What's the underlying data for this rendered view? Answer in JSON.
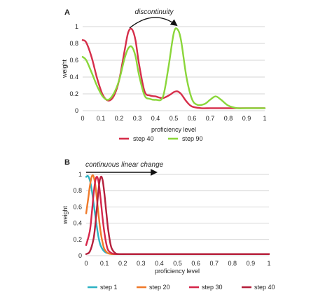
{
  "chart_data": [
    {
      "panel_label": "A",
      "type": "line",
      "xlabel": "proficiency level",
      "ylabel": "weight",
      "xlim": [
        0,
        1
      ],
      "ylim": [
        0,
        1
      ],
      "x_ticks": [
        0,
        0.1,
        0.2,
        0.3,
        0.4,
        0.5,
        0.6,
        0.7,
        0.8,
        0.9,
        1
      ],
      "x_tick_labels": [
        "0",
        "0.1",
        "0.2",
        "0.3",
        "0.4",
        "0.5",
        "0.6",
        "0.7",
        "0.8",
        "0.9",
        "1"
      ],
      "y_ticks": [
        0,
        0.2,
        0.4,
        0.6,
        0.8,
        1
      ],
      "y_tick_labels": [
        "0",
        "0.2",
        "0.4",
        "0.6",
        "0.8",
        "1"
      ],
      "grid": "horizontal",
      "legend_placement": "bottom",
      "annotation": "discontinuity",
      "series": [
        {
          "name": "step 40",
          "color": "#d62e4a",
          "x": [
            0,
            0.02,
            0.05,
            0.08,
            0.11,
            0.14,
            0.17,
            0.2,
            0.23,
            0.25,
            0.27,
            0.29,
            0.31,
            0.34,
            0.37,
            0.4,
            0.44,
            0.48,
            0.5,
            0.52,
            0.54,
            0.57,
            0.6,
            0.65,
            0.7,
            0.75,
            0.8,
            0.85,
            0.9,
            1
          ],
          "y": [
            0.84,
            0.81,
            0.63,
            0.38,
            0.19,
            0.12,
            0.17,
            0.36,
            0.71,
            0.93,
            0.97,
            0.84,
            0.55,
            0.23,
            0.18,
            0.17,
            0.15,
            0.19,
            0.22,
            0.23,
            0.2,
            0.11,
            0.05,
            0.03,
            0.03,
            0.03,
            0.03,
            0.03,
            0.03,
            0.03
          ]
        },
        {
          "name": "step 90",
          "color": "#8ad63a",
          "x": [
            0,
            0.02,
            0.05,
            0.08,
            0.11,
            0.14,
            0.17,
            0.2,
            0.23,
            0.25,
            0.27,
            0.29,
            0.31,
            0.34,
            0.37,
            0.4,
            0.44,
            0.47,
            0.5,
            0.52,
            0.54,
            0.57,
            0.6,
            0.63,
            0.67,
            0.7,
            0.73,
            0.76,
            0.8,
            0.85,
            0.9,
            1
          ],
          "y": [
            0.64,
            0.6,
            0.45,
            0.29,
            0.17,
            0.13,
            0.2,
            0.36,
            0.62,
            0.74,
            0.76,
            0.65,
            0.42,
            0.18,
            0.14,
            0.13,
            0.16,
            0.5,
            0.92,
            0.97,
            0.84,
            0.4,
            0.14,
            0.07,
            0.08,
            0.13,
            0.17,
            0.13,
            0.06,
            0.03,
            0.03,
            0.03
          ]
        }
      ]
    },
    {
      "panel_label": "B",
      "type": "line",
      "xlabel": "proficiency level",
      "ylabel": "weight",
      "xlim": [
        0,
        1
      ],
      "ylim": [
        0,
        1
      ],
      "x_ticks": [
        0,
        0.1,
        0.2,
        0.3,
        0.4,
        0.5,
        0.6,
        0.7,
        0.8,
        0.9,
        1
      ],
      "x_tick_labels": [
        "0",
        "0.1",
        "0.2",
        "0.3",
        "0.4",
        "0.5",
        "0.6",
        "0.7",
        "0.8",
        "0.9",
        "1"
      ],
      "y_ticks": [
        0,
        0.2,
        0.4,
        0.6,
        0.8,
        1
      ],
      "y_tick_labels": [
        "0",
        "0.2",
        "0.4",
        "0.6",
        "0.8",
        "1"
      ],
      "grid": "horizontal",
      "legend_placement": "bottom",
      "annotation": "continuous linear change",
      "series": [
        {
          "name": "step 1",
          "color": "#2eb3c4",
          "x": [
            0,
            0.01,
            0.02,
            0.03,
            0.04,
            0.05,
            0.06,
            0.07,
            0.08,
            0.1,
            0.12,
            0.14,
            0.16,
            0.2,
            0.3,
            1
          ],
          "y": [
            0.97,
            0.98,
            0.93,
            0.82,
            0.66,
            0.49,
            0.33,
            0.2,
            0.12,
            0.05,
            0.03,
            0.02,
            0.02,
            0.02,
            0.02,
            0.02
          ]
        },
        {
          "name": "step 20",
          "color": "#f07a2a",
          "x": [
            0,
            0.01,
            0.02,
            0.03,
            0.04,
            0.05,
            0.06,
            0.07,
            0.08,
            0.09,
            0.1,
            0.12,
            0.14,
            0.17,
            0.2,
            0.3,
            1
          ],
          "y": [
            0.52,
            0.68,
            0.85,
            0.97,
            0.98,
            0.87,
            0.67,
            0.46,
            0.28,
            0.16,
            0.08,
            0.03,
            0.02,
            0.02,
            0.02,
            0.02,
            0.02
          ]
        },
        {
          "name": "step 30",
          "color": "#d6264a",
          "x": [
            0,
            0.02,
            0.03,
            0.04,
            0.05,
            0.06,
            0.07,
            0.08,
            0.09,
            0.1,
            0.11,
            0.12,
            0.14,
            0.16,
            0.2,
            0.3,
            1
          ],
          "y": [
            0.13,
            0.3,
            0.5,
            0.74,
            0.92,
            0.97,
            0.88,
            0.68,
            0.46,
            0.28,
            0.15,
            0.07,
            0.03,
            0.02,
            0.02,
            0.02,
            0.02
          ]
        },
        {
          "name": "step 40",
          "color": "#b5203c",
          "x": [
            0,
            0.02,
            0.04,
            0.05,
            0.06,
            0.07,
            0.08,
            0.09,
            0.1,
            0.11,
            0.12,
            0.13,
            0.14,
            0.16,
            0.18,
            0.22,
            0.3,
            1
          ],
          "y": [
            0.02,
            0.05,
            0.2,
            0.38,
            0.62,
            0.86,
            0.97,
            0.93,
            0.76,
            0.54,
            0.33,
            0.18,
            0.09,
            0.03,
            0.02,
            0.02,
            0.02,
            0.02
          ]
        }
      ]
    }
  ]
}
